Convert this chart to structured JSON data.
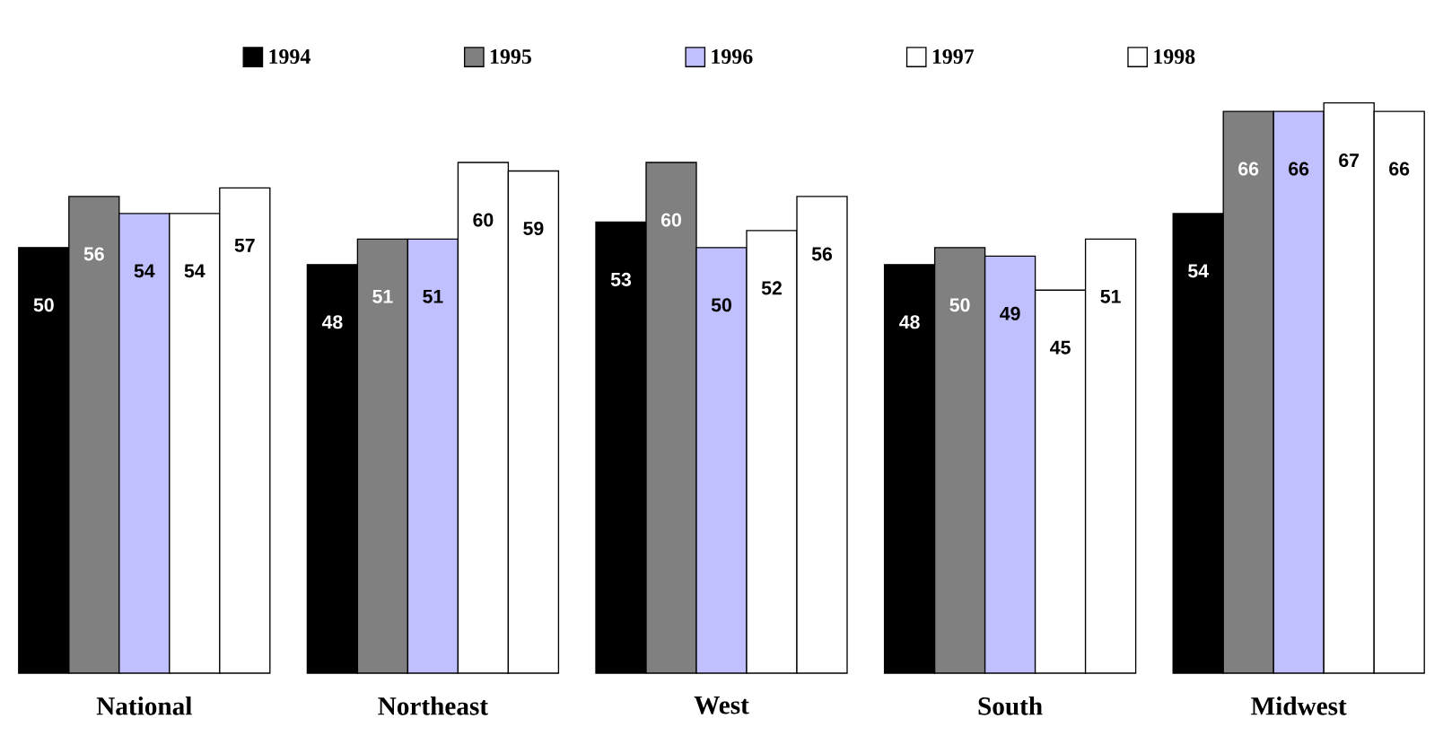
{
  "chart_data": {
    "type": "bar",
    "categories": [
      "National",
      "Northeast",
      "West",
      "South",
      "Midwest"
    ],
    "series": [
      {
        "name": "1994",
        "color": "#000000",
        "values": [
          50,
          48,
          53,
          48,
          54
        ]
      },
      {
        "name": "1995",
        "color": "#808080",
        "values": [
          56,
          51,
          60,
          50,
          66
        ]
      },
      {
        "name": "1996",
        "color": "#c0c0ff",
        "values": [
          54,
          51,
          50,
          49,
          66
        ]
      },
      {
        "name": "1997",
        "color": "#ffffff",
        "values": [
          54,
          60,
          52,
          45,
          67
        ]
      },
      {
        "name": "1998",
        "color": "#ffffff",
        "values": [
          57,
          59,
          56,
          51,
          66
        ]
      }
    ],
    "data_labels": true,
    "legend": "top"
  }
}
